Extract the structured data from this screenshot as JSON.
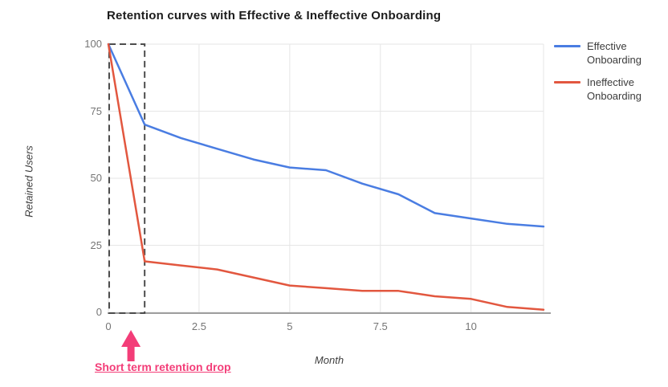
{
  "title": "Retention curves with Effective & Ineffective Onboarding",
  "chart_data": {
    "type": "line",
    "title": "Retention curves with Effective & Ineffective Onboarding",
    "xlabel": "Month",
    "ylabel": "Retained Users",
    "x": [
      0,
      1,
      2,
      3,
      4,
      5,
      6,
      7,
      8,
      9,
      10,
      11,
      12
    ],
    "series": [
      {
        "name": "Effective Onboarding",
        "color": "#4a7de2",
        "values": [
          100,
          70,
          65,
          61,
          57,
          54,
          53,
          48,
          44,
          37,
          35,
          33,
          32
        ]
      },
      {
        "name": "Ineffective Onboarding",
        "color": "#e2573f",
        "values": [
          100,
          19,
          17.5,
          16,
          13,
          10,
          9,
          8,
          8,
          6,
          5,
          2,
          1
        ]
      }
    ],
    "xlim": [
      0,
      12
    ],
    "ylim": [
      0,
      100
    ],
    "xticks": [
      "0",
      "2.5",
      "5",
      "7.5",
      "10"
    ],
    "xtick_values": [
      0,
      2.5,
      5,
      7.5,
      10
    ],
    "yticks": [
      "0",
      "25",
      "50",
      "75",
      "100"
    ],
    "ytick_values": [
      0,
      25,
      50,
      75,
      100
    ],
    "grid": true,
    "gridline_color": "#e6e6e6",
    "axis_line_color": "#9e9e9e",
    "tick_label_color": "#757575",
    "legend_position": "right",
    "annotations": {
      "dashed_box": {
        "x0": 0,
        "x1": 1,
        "y0": 0,
        "y1": 100,
        "color": "#4d4d4d"
      },
      "arrow_label": {
        "text": "Short term retention drop",
        "color": "#f33d78"
      }
    }
  }
}
